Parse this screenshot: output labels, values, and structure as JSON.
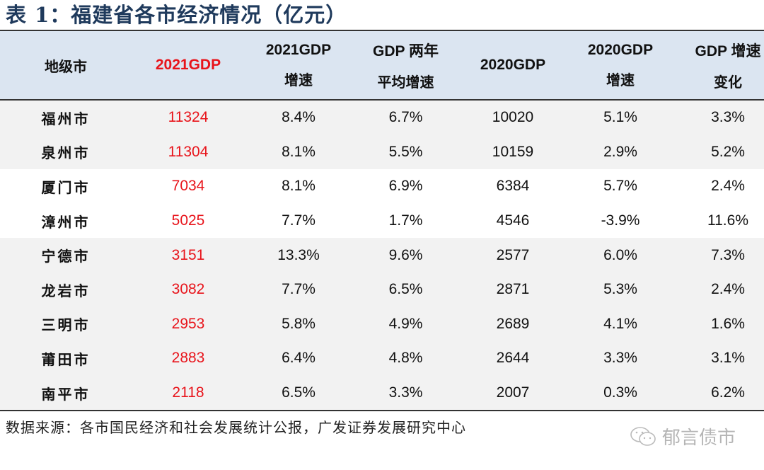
{
  "title": "表 1：福建省各市经济情况（亿元）",
  "headers": [
    {
      "lines": [
        "地级市"
      ]
    },
    {
      "lines": [
        "2021GDP"
      ],
      "highlight": true
    },
    {
      "lines": [
        "2021GDP",
        "增速"
      ]
    },
    {
      "lines": [
        "GDP 两年",
        "平均增速"
      ]
    },
    {
      "lines": [
        "2020GDP"
      ]
    },
    {
      "lines": [
        "2020GDP",
        "增速"
      ]
    },
    {
      "lines": [
        "GDP 增速",
        "变化"
      ]
    }
  ],
  "rows": [
    [
      "福州市",
      "11324",
      "8.4%",
      "6.7%",
      "10020",
      "5.1%",
      "3.3%"
    ],
    [
      "泉州市",
      "11304",
      "8.1%",
      "5.5%",
      "10159",
      "2.9%",
      "5.2%"
    ],
    [
      "厦门市",
      "7034",
      "8.1%",
      "6.9%",
      "6384",
      "5.7%",
      "2.4%"
    ],
    [
      "漳州市",
      "5025",
      "7.7%",
      "1.7%",
      "4546",
      "-3.9%",
      "11.6%"
    ],
    [
      "宁德市",
      "3151",
      "13.3%",
      "9.6%",
      "2577",
      "6.0%",
      "7.3%"
    ],
    [
      "龙岩市",
      "3082",
      "7.7%",
      "6.5%",
      "2871",
      "5.3%",
      "2.4%"
    ],
    [
      "三明市",
      "2953",
      "5.8%",
      "4.9%",
      "2689",
      "4.1%",
      "1.6%"
    ],
    [
      "莆田市",
      "2883",
      "6.4%",
      "4.8%",
      "2644",
      "3.3%",
      "3.1%"
    ],
    [
      "南平市",
      "2118",
      "6.5%",
      "3.3%",
      "2007",
      "0.3%",
      "6.2%"
    ]
  ],
  "source": "数据来源：各市国民经济和社会发展统计公报，广发证券发展研究中心",
  "watermark": {
    "icon": "wechat-icon",
    "text": "郁言债市"
  },
  "colors": {
    "header_bg": "#dbe5f1",
    "highlight": "#e8141b",
    "row_gray": "#f2f2f2",
    "title": "#1f3a5c"
  }
}
